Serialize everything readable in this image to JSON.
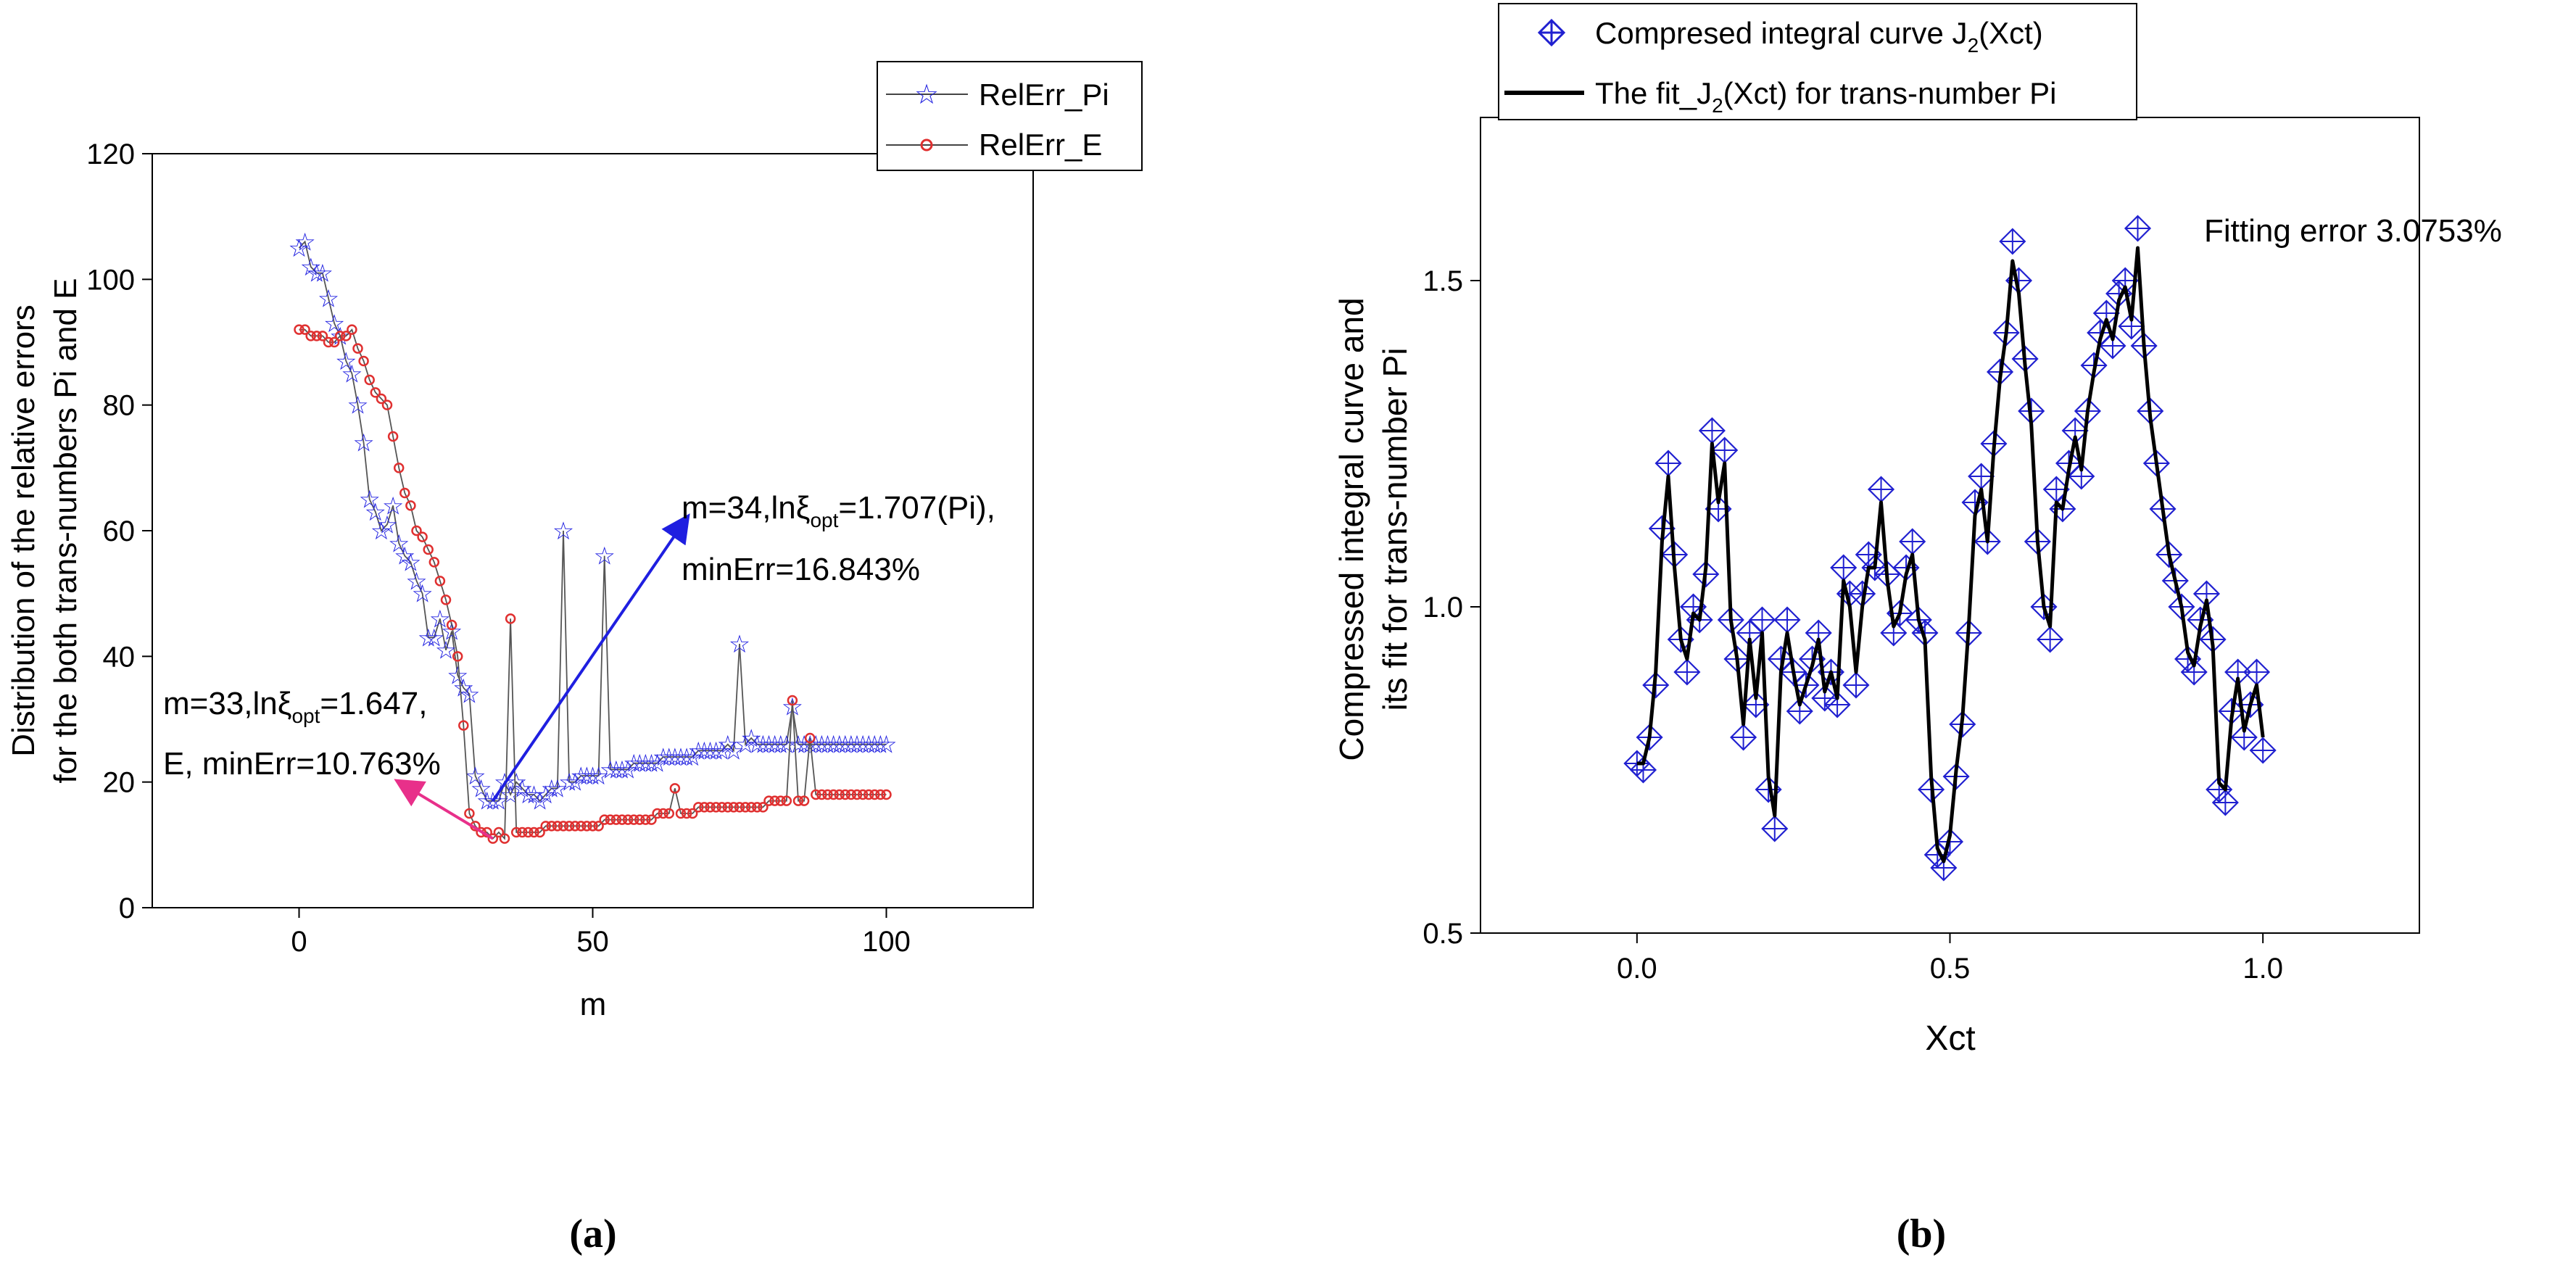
{
  "chart_data": [
    {
      "panel": "a",
      "type": "line",
      "panel_caption": "(a)",
      "title": "",
      "xlabel": "m",
      "ylabel_line1": "Distribution of the relative errors",
      "ylabel_line2": "for the both trans-numbers Pi and E",
      "xlim": [
        -25,
        125
      ],
      "ylim": [
        0,
        120
      ],
      "xticks": [
        0,
        50,
        100
      ],
      "yticks": [
        0,
        20,
        40,
        60,
        80,
        100,
        120
      ],
      "grid": false,
      "legend_position": "top-right",
      "series": [
        {
          "name": "RelErr_Pi",
          "color": "#1f1fe0",
          "marker": "star",
          "x": [
            0,
            1,
            2,
            3,
            4,
            5,
            6,
            7,
            8,
            9,
            10,
            11,
            12,
            13,
            14,
            15,
            16,
            17,
            18,
            19,
            20,
            21,
            22,
            23,
            24,
            25,
            26,
            27,
            28,
            29,
            30,
            31,
            32,
            33,
            34,
            35,
            36,
            37,
            38,
            39,
            40,
            41,
            42,
            43,
            44,
            45,
            46,
            47,
            48,
            49,
            50,
            51,
            52,
            53,
            54,
            55,
            56,
            57,
            58,
            59,
            60,
            61,
            62,
            63,
            64,
            65,
            66,
            67,
            68,
            69,
            70,
            71,
            72,
            73,
            74,
            75,
            76,
            77,
            78,
            79,
            80,
            81,
            82,
            83,
            84,
            85,
            86,
            87,
            88,
            89,
            90,
            91,
            92,
            93,
            94,
            95,
            96,
            97,
            98,
            99,
            100
          ],
          "y": [
            105,
            106,
            102,
            101,
            101,
            97,
            93,
            91,
            87,
            85,
            80,
            74,
            65,
            63,
            60,
            61,
            64,
            58,
            56,
            55,
            52,
            50,
            43,
            43,
            46,
            41,
            44,
            37,
            35,
            34,
            21,
            19,
            17,
            17,
            17,
            20,
            18,
            20,
            19,
            18,
            18,
            17,
            18,
            19,
            19,
            60,
            20,
            20,
            21,
            21,
            21,
            21,
            56,
            22,
            22,
            22,
            22,
            23,
            23,
            23,
            23,
            23,
            24,
            24,
            24,
            24,
            24,
            24,
            25,
            25,
            25,
            25,
            25,
            26,
            25,
            42,
            26,
            27,
            26,
            26,
            26,
            26,
            26,
            26,
            32,
            26,
            26,
            26,
            26,
            26,
            26,
            26,
            26,
            26,
            26,
            26,
            26,
            26,
            26,
            26,
            26
          ]
        },
        {
          "name": "RelErr_E",
          "color": "#e03030",
          "marker": "circle",
          "x": [
            0,
            1,
            2,
            3,
            4,
            5,
            6,
            7,
            8,
            9,
            10,
            11,
            12,
            13,
            14,
            15,
            16,
            17,
            18,
            19,
            20,
            21,
            22,
            23,
            24,
            25,
            26,
            27,
            28,
            29,
            30,
            31,
            32,
            33,
            34,
            35,
            36,
            37,
            38,
            39,
            40,
            41,
            42,
            43,
            44,
            45,
            46,
            47,
            48,
            49,
            50,
            51,
            52,
            53,
            54,
            55,
            56,
            57,
            58,
            59,
            60,
            61,
            62,
            63,
            64,
            65,
            66,
            67,
            68,
            69,
            70,
            71,
            72,
            73,
            74,
            75,
            76,
            77,
            78,
            79,
            80,
            81,
            82,
            83,
            84,
            85,
            86,
            87,
            88,
            89,
            90,
            91,
            92,
            93,
            94,
            95,
            96,
            97,
            98,
            99,
            100
          ],
          "y": [
            92,
            92,
            91,
            91,
            91,
            90,
            90,
            91,
            91,
            92,
            89,
            87,
            84,
            82,
            81,
            80,
            75,
            70,
            66,
            64,
            60,
            59,
            57,
            55,
            52,
            49,
            45,
            40,
            29,
            15,
            13,
            12,
            12,
            11,
            12,
            11,
            46,
            12,
            12,
            12,
            12,
            12,
            13,
            13,
            13,
            13,
            13,
            13,
            13,
            13,
            13,
            13,
            14,
            14,
            14,
            14,
            14,
            14,
            14,
            14,
            14,
            15,
            15,
            15,
            19,
            15,
            15,
            15,
            16,
            16,
            16,
            16,
            16,
            16,
            16,
            16,
            16,
            16,
            16,
            16,
            17,
            17,
            17,
            17,
            33,
            17,
            17,
            27,
            18,
            18,
            18,
            18,
            18,
            18,
            18,
            18,
            18,
            18,
            18,
            18,
            18
          ]
        }
      ],
      "annotations": [
        {
          "name": "pi",
          "color": "#1f1fe0",
          "from": [
            33,
            17
          ],
          "to": [
            66,
            62
          ],
          "line1_a": "m=34,ln",
          "line1_b": "ξ",
          "line1_sub": "opt",
          "line1_c": "=1.707(Pi),",
          "line2": "minErr=16.843%"
        },
        {
          "name": "e",
          "color": "#e8308a",
          "from": [
            33,
            11
          ],
          "to": [
            17,
            20
          ],
          "line1_a": "m=33,ln",
          "line1_b": "ξ",
          "line1_sub": "opt",
          "line1_c": "=1.647,",
          "line2": "E, minErr=10.763%"
        }
      ]
    },
    {
      "panel": "b",
      "type": "line",
      "panel_caption": "(b)",
      "title": "",
      "xlabel": "Xct",
      "ylabel_line1": "Compressed integral curve and",
      "ylabel_line2": "its fit for trans-number Pi",
      "xlim": [
        -0.25,
        1.25
      ],
      "ylim": [
        0.5,
        1.75
      ],
      "xticks": [
        0.0,
        0.5,
        1.0
      ],
      "xtick_labels": [
        "0.0",
        "0.5",
        "1.0"
      ],
      "yticks": [
        0.5,
        1.0,
        1.5
      ],
      "ytick_labels": [
        "0.5",
        "1.0",
        "1.5"
      ],
      "grid": false,
      "legend_position": "top",
      "annotation": "Fitting error 3.0753%",
      "series": [
        {
          "name": "Compresed integral curve J2(Xct)",
          "legend_a": "Compresed integral curve J",
          "legend_sub": "2",
          "legend_b": "(Xct)",
          "color": "#2020d0",
          "marker": "diamond",
          "x": [
            0.0,
            0.01,
            0.02,
            0.03,
            0.04,
            0.05,
            0.06,
            0.07,
            0.08,
            0.09,
            0.1,
            0.11,
            0.12,
            0.13,
            0.14,
            0.15,
            0.16,
            0.17,
            0.18,
            0.19,
            0.2,
            0.21,
            0.22,
            0.23,
            0.24,
            0.25,
            0.26,
            0.27,
            0.28,
            0.29,
            0.3,
            0.31,
            0.32,
            0.33,
            0.34,
            0.35,
            0.36,
            0.37,
            0.38,
            0.39,
            0.4,
            0.41,
            0.42,
            0.43,
            0.44,
            0.45,
            0.46,
            0.47,
            0.48,
            0.49,
            0.5,
            0.51,
            0.52,
            0.53,
            0.54,
            0.55,
            0.56,
            0.57,
            0.58,
            0.59,
            0.6,
            0.61,
            0.62,
            0.63,
            0.64,
            0.65,
            0.66,
            0.67,
            0.68,
            0.69,
            0.7,
            0.71,
            0.72,
            0.73,
            0.74,
            0.75,
            0.76,
            0.77,
            0.78,
            0.79,
            0.8,
            0.81,
            0.82,
            0.83,
            0.84,
            0.85,
            0.86,
            0.87,
            0.88,
            0.89,
            0.9,
            0.91,
            0.92,
            0.93,
            0.94,
            0.95,
            0.96,
            0.97,
            0.98,
            0.99,
            1.0
          ],
          "y": [
            0.76,
            0.75,
            0.8,
            0.88,
            1.12,
            1.22,
            1.08,
            0.95,
            0.9,
            1.0,
            0.98,
            1.05,
            1.27,
            1.15,
            1.24,
            0.98,
            0.92,
            0.8,
            0.96,
            0.85,
            0.98,
            0.72,
            0.66,
            0.92,
            0.98,
            0.9,
            0.84,
            0.88,
            0.92,
            0.96,
            0.86,
            0.9,
            0.85,
            1.06,
            1.02,
            0.88,
            1.02,
            1.08,
            1.06,
            1.18,
            1.05,
            0.96,
            0.99,
            1.06,
            1.1,
            0.98,
            0.96,
            0.72,
            0.62,
            0.6,
            0.64,
            0.74,
            0.82,
            0.96,
            1.16,
            1.2,
            1.1,
            1.25,
            1.36,
            1.42,
            1.56,
            1.5,
            1.38,
            1.3,
            1.1,
            1.0,
            0.95,
            1.18,
            1.15,
            1.22,
            1.27,
            1.2,
            1.3,
            1.37,
            1.42,
            1.45,
            1.4,
            1.48,
            1.5,
            1.43,
            1.58,
            1.4,
            1.3,
            1.22,
            1.15,
            1.08,
            1.04,
            1.0,
            0.92,
            0.9,
            0.98,
            1.02,
            0.95,
            0.72,
            0.7,
            0.84,
            0.9,
            0.8,
            0.85,
            0.9,
            0.78
          ]
        },
        {
          "name": "The fit_J2(Xct) for trans-number Pi",
          "legend_a": "The fit_J",
          "legend_sub": "2",
          "legend_b": "(Xct) for trans-number Pi",
          "color": "#000000",
          "marker": "none",
          "x": [
            0.0,
            0.01,
            0.02,
            0.03,
            0.04,
            0.05,
            0.06,
            0.07,
            0.08,
            0.09,
            0.1,
            0.11,
            0.12,
            0.13,
            0.14,
            0.15,
            0.16,
            0.17,
            0.18,
            0.19,
            0.2,
            0.21,
            0.22,
            0.23,
            0.24,
            0.25,
            0.26,
            0.27,
            0.28,
            0.29,
            0.3,
            0.31,
            0.32,
            0.33,
            0.34,
            0.35,
            0.36,
            0.37,
            0.38,
            0.39,
            0.4,
            0.41,
            0.42,
            0.43,
            0.44,
            0.45,
            0.46,
            0.47,
            0.48,
            0.49,
            0.5,
            0.51,
            0.52,
            0.53,
            0.54,
            0.55,
            0.56,
            0.57,
            0.58,
            0.59,
            0.6,
            0.61,
            0.62,
            0.63,
            0.64,
            0.65,
            0.66,
            0.67,
            0.68,
            0.69,
            0.7,
            0.71,
            0.72,
            0.73,
            0.74,
            0.75,
            0.76,
            0.77,
            0.78,
            0.79,
            0.8,
            0.81,
            0.82,
            0.83,
            0.84,
            0.85,
            0.86,
            0.87,
            0.88,
            0.89,
            0.9,
            0.91,
            0.92,
            0.93,
            0.94,
            0.95,
            0.96,
            0.97,
            0.98,
            0.99,
            1.0
          ],
          "y": [
            0.76,
            0.76,
            0.8,
            0.9,
            1.1,
            1.2,
            1.06,
            0.95,
            0.92,
            0.99,
            0.98,
            1.06,
            1.25,
            1.16,
            1.22,
            0.98,
            0.92,
            0.82,
            0.95,
            0.86,
            0.96,
            0.74,
            0.68,
            0.9,
            0.96,
            0.9,
            0.85,
            0.88,
            0.91,
            0.95,
            0.87,
            0.9,
            0.86,
            1.04,
            1.0,
            0.9,
            1.0,
            1.06,
            1.06,
            1.16,
            1.04,
            0.97,
            0.99,
            1.05,
            1.08,
            0.98,
            0.95,
            0.74,
            0.63,
            0.61,
            0.65,
            0.75,
            0.83,
            0.97,
            1.14,
            1.18,
            1.1,
            1.24,
            1.35,
            1.42,
            1.53,
            1.48,
            1.37,
            1.28,
            1.1,
            1.0,
            0.97,
            1.16,
            1.15,
            1.21,
            1.26,
            1.21,
            1.3,
            1.36,
            1.41,
            1.44,
            1.41,
            1.47,
            1.49,
            1.44,
            1.55,
            1.4,
            1.29,
            1.22,
            1.15,
            1.08,
            1.04,
            1.0,
            0.93,
            0.91,
            0.97,
            1.01,
            0.94,
            0.73,
            0.72,
            0.83,
            0.89,
            0.81,
            0.85,
            0.88,
            0.8
          ]
        }
      ]
    }
  ]
}
